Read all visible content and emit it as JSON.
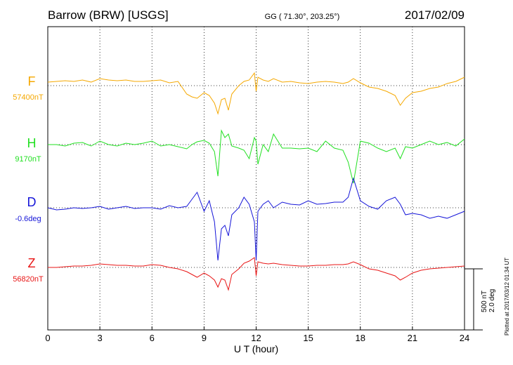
{
  "header": {
    "station": "Barrow (BRW)  [USGS]",
    "coords": "GG ( 71.30°, 203.25°)",
    "date": "2017/02/09"
  },
  "plotted_note": "Plotted at 2017/03/12 01:34  UT",
  "scale_bar": {
    "label1": "500 nT",
    "label2": "2.0 deg"
  },
  "chart_data": {
    "type": "line",
    "xlabel": "U T (hour)",
    "xlim": [
      0,
      24
    ],
    "xticks": [
      0,
      3,
      6,
      9,
      12,
      15,
      18,
      21,
      24
    ],
    "grid": true,
    "series": [
      {
        "name": "F",
        "baseline": "57400nT",
        "color": "#f5a800",
        "x": [
          0,
          0.5,
          1,
          1.5,
          2,
          2.5,
          3,
          3.5,
          4,
          4.5,
          5,
          5.5,
          6,
          6.5,
          7,
          7.5,
          8,
          8.3,
          8.6,
          9,
          9.3,
          9.6,
          9.8,
          10,
          10.2,
          10.4,
          10.6,
          11,
          11.3,
          11.6,
          11.9,
          12,
          12.1,
          12.4,
          12.7,
          13,
          13.5,
          14,
          14.5,
          15,
          15.5,
          16,
          16.5,
          17,
          17.3,
          17.6,
          18,
          18.5,
          19,
          19.5,
          20,
          20.3,
          20.6,
          21,
          21.5,
          22,
          22.5,
          23,
          23.5,
          24
        ],
        "y": [
          -5,
          -6,
          -7,
          -6,
          -8,
          -5,
          -10,
          -8,
          -7,
          -8,
          -6,
          -6,
          -7,
          -8,
          -4,
          -6,
          12,
          16,
          18,
          10,
          14,
          25,
          40,
          20,
          18,
          35,
          12,
          0,
          -6,
          -8,
          -18,
          8,
          -12,
          -8,
          -6,
          -10,
          -5,
          -6,
          -4,
          -3,
          -5,
          -6,
          -5,
          -3,
          -5,
          -10,
          -4,
          2,
          4,
          8,
          14,
          28,
          18,
          10,
          8,
          4,
          2,
          -3,
          -6,
          -12
        ]
      },
      {
        "name": "H",
        "baseline": "9170nT",
        "color": "#22e022",
        "x": [
          0,
          0.5,
          1,
          1.5,
          2,
          2.5,
          3,
          3.5,
          4,
          4.5,
          5,
          5.5,
          6,
          6.5,
          7,
          7.5,
          8,
          8.3,
          8.6,
          9,
          9.3,
          9.6,
          9.8,
          10,
          10.2,
          10.4,
          10.6,
          11,
          11.3,
          11.6,
          11.9,
          12,
          12.1,
          12.4,
          12.7,
          13,
          13.5,
          14,
          14.5,
          15,
          15.5,
          16,
          16.5,
          17,
          17.3,
          17.6,
          18,
          18.5,
          19,
          19.5,
          20,
          20.3,
          20.6,
          21,
          21.5,
          22,
          22.5,
          23,
          23.5,
          24
        ],
        "y": [
          0,
          0,
          2,
          -2,
          -3,
          2,
          -5,
          0,
          2,
          -2,
          0,
          -2,
          -5,
          2,
          0,
          3,
          6,
          0,
          -4,
          -6,
          -2,
          10,
          45,
          -20,
          -10,
          -15,
          2,
          5,
          8,
          20,
          -10,
          -5,
          28,
          0,
          10,
          -15,
          5,
          5,
          6,
          5,
          10,
          -5,
          5,
          8,
          25,
          55,
          -5,
          -2,
          5,
          10,
          5,
          20,
          3,
          5,
          0,
          -5,
          0,
          -3,
          2,
          -8
        ]
      },
      {
        "name": "D",
        "baseline": "-0.6deg",
        "color": "#1515d8",
        "x": [
          0,
          0.5,
          1,
          1.5,
          2,
          2.5,
          3,
          3.5,
          4,
          4.5,
          5,
          5.5,
          6,
          6.5,
          7,
          7.5,
          8,
          8.3,
          8.6,
          9,
          9.3,
          9.6,
          9.8,
          10,
          10.2,
          10.4,
          10.6,
          11,
          11.3,
          11.6,
          11.9,
          12,
          12.1,
          12.4,
          12.7,
          13,
          13.5,
          14,
          14.5,
          15,
          15.5,
          16,
          16.5,
          17,
          17.3,
          17.6,
          18,
          18.5,
          19,
          19.5,
          20,
          20.3,
          20.6,
          21,
          21.5,
          22,
          22.5,
          23,
          23.5,
          24
        ],
        "y": [
          0,
          3,
          2,
          0,
          1,
          0,
          -2,
          2,
          0,
          -2,
          1,
          0,
          0,
          2,
          -3,
          0,
          -2,
          -12,
          -22,
          5,
          -10,
          20,
          75,
          30,
          25,
          40,
          10,
          0,
          -15,
          -5,
          20,
          75,
          5,
          -5,
          -10,
          0,
          -8,
          -5,
          -4,
          -10,
          -5,
          -6,
          -8,
          -8,
          -15,
          -42,
          -10,
          -2,
          2,
          -10,
          -15,
          -5,
          10,
          8,
          10,
          15,
          12,
          15,
          10,
          5
        ]
      },
      {
        "name": "Z",
        "baseline": "56820nT",
        "color": "#e81515",
        "x": [
          0,
          0.5,
          1,
          1.5,
          2,
          2.5,
          3,
          3.5,
          4,
          4.5,
          5,
          5.5,
          6,
          6.5,
          7,
          7.5,
          8,
          8.3,
          8.6,
          9,
          9.3,
          9.6,
          9.8,
          10,
          10.2,
          10.4,
          10.6,
          11,
          11.3,
          11.6,
          11.9,
          12,
          12.1,
          12.4,
          12.7,
          13,
          13.5,
          14,
          14.5,
          15,
          15.5,
          16,
          16.5,
          17,
          17.3,
          17.6,
          18,
          18.5,
          19,
          19.5,
          20,
          20.3,
          20.6,
          21,
          21.5,
          22,
          22.5,
          23,
          23.5,
          24
        ],
        "y": [
          0,
          0,
          -1,
          -2,
          -2,
          -3,
          -5,
          -4,
          -3,
          -3,
          -2,
          -2,
          -4,
          -3,
          0,
          2,
          6,
          10,
          14,
          8,
          12,
          18,
          28,
          16,
          18,
          32,
          10,
          2,
          -6,
          -9,
          -14,
          12,
          -8,
          -6,
          -5,
          -6,
          -4,
          -3,
          -2,
          -2,
          -3,
          -3,
          -4,
          -4,
          -5,
          -8,
          -4,
          2,
          4,
          8,
          12,
          18,
          14,
          8,
          4,
          2,
          1,
          0,
          -1,
          -2
        ]
      }
    ]
  }
}
